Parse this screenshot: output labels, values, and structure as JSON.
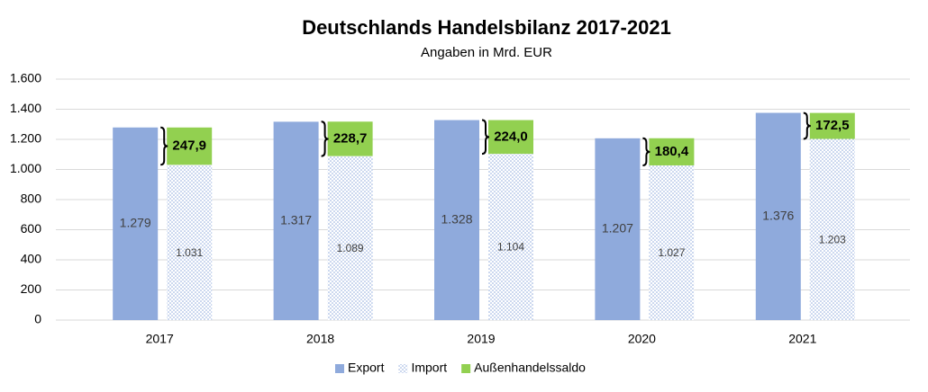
{
  "chart_data": {
    "type": "bar",
    "title": "Deutschlands Handelsbilanz 2017-2021",
    "subtitle": "Angaben in Mrd. EUR",
    "categories": [
      "2017",
      "2018",
      "2019",
      "2020",
      "2021"
    ],
    "series": [
      {
        "name": "Export",
        "color": "#8faadc",
        "values": [
          1279,
          1317,
          1328,
          1207,
          1376
        ],
        "value_labels": [
          "1.279",
          "1.317",
          "1.328",
          "1.207",
          "1.376"
        ]
      },
      {
        "name": "Import",
        "color": "#8faadc",
        "pattern": "dots",
        "values": [
          1031,
          1089,
          1104,
          1027,
          1203
        ],
        "value_labels": [
          "1.031",
          "1.089",
          "1.104",
          "1.027",
          "1.203"
        ]
      },
      {
        "name": "Außenhandelssaldo",
        "color": "#92d050",
        "stack_on": "Import",
        "values": [
          247.9,
          228.7,
          224.0,
          180.4,
          172.5
        ],
        "value_labels": [
          "247,9",
          "228,7",
          "224,0",
          "180,4",
          "172,5"
        ]
      }
    ],
    "ylim": [
      0,
      1600
    ],
    "yticks": [
      0,
      200,
      400,
      600,
      800,
      {
        "value": 1000,
        "label": "1.000"
      },
      {
        "value": 1200,
        "label": "1.200"
      },
      {
        "value": 1400,
        "label": "1.400"
      },
      {
        "value": 1600,
        "label": "1.600"
      }
    ],
    "grid": true,
    "legend": "bottom"
  }
}
